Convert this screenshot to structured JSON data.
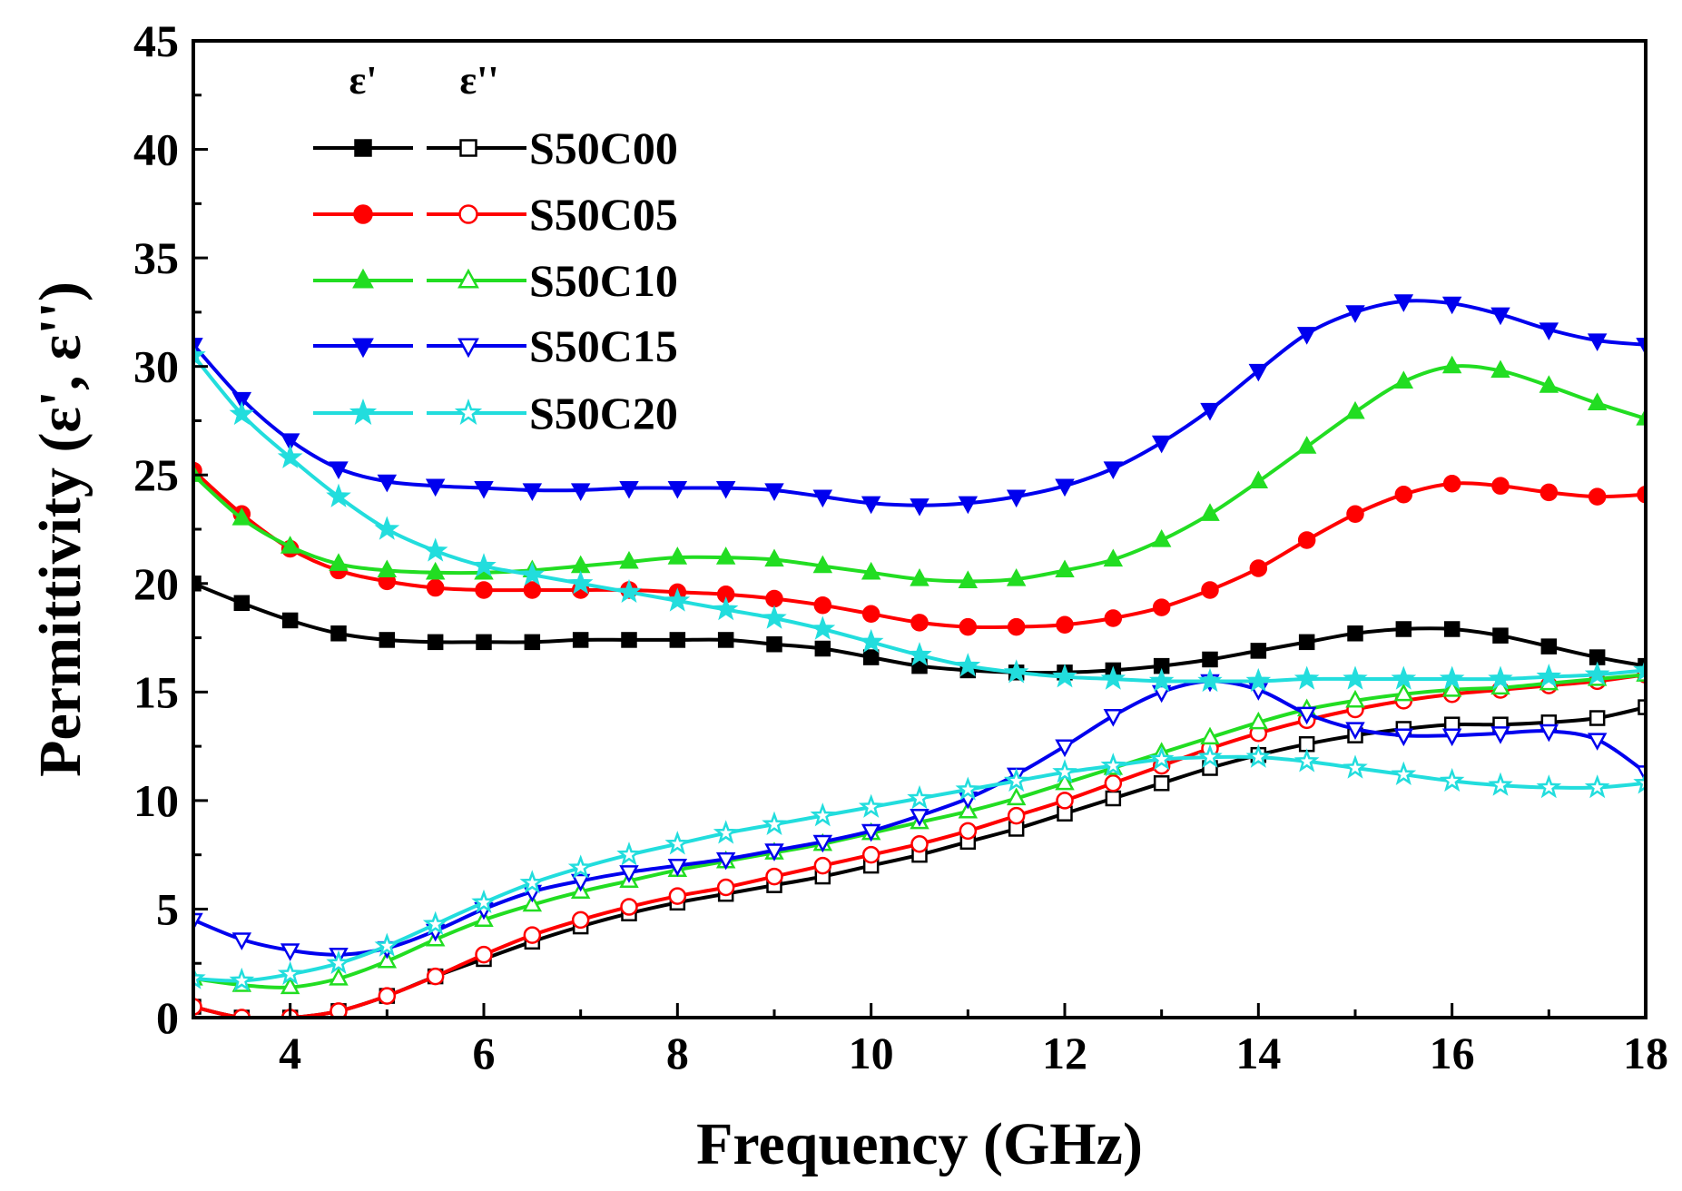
{
  "chart_data": {
    "type": "line",
    "title": "",
    "xlabel": "Frequency (GHz)",
    "ylabel": "Permittivity (ε', ε'')",
    "xlim": [
      3,
      18
    ],
    "ylim": [
      0,
      45
    ],
    "xticks": [
      4,
      6,
      8,
      10,
      12,
      14,
      16,
      18
    ],
    "yticks": [
      0,
      5,
      10,
      15,
      20,
      25,
      30,
      35,
      40,
      45
    ],
    "grid": false,
    "legend_position": "top-left",
    "legend_headers": [
      "ε'",
      "ε''"
    ],
    "x_grid": [
      3,
      3.5,
      4,
      4.5,
      5,
      5.5,
      6,
      6.5,
      7,
      7.5,
      8,
      8.5,
      9,
      9.5,
      10,
      10.5,
      11,
      11.5,
      12,
      12.5,
      13,
      13.5,
      14,
      14.5,
      15,
      15.5,
      16,
      16.5,
      17,
      17.5,
      18
    ],
    "series": [
      {
        "name": "S50C00",
        "color": "#000000",
        "eps_real": [
          20.0,
          19.1,
          18.3,
          17.7,
          17.4,
          17.3,
          17.3,
          17.3,
          17.4,
          17.4,
          17.4,
          17.4,
          17.2,
          17.0,
          16.6,
          16.2,
          16.0,
          15.9,
          15.9,
          16.0,
          16.2,
          16.5,
          16.9,
          17.3,
          17.7,
          17.9,
          17.9,
          17.6,
          17.1,
          16.6,
          16.2
        ],
        "eps_imag": [
          0.5,
          0.0,
          0.0,
          0.3,
          1.0,
          1.9,
          2.7,
          3.5,
          4.2,
          4.8,
          5.3,
          5.7,
          6.1,
          6.5,
          7.0,
          7.5,
          8.1,
          8.7,
          9.4,
          10.1,
          10.8,
          11.5,
          12.1,
          12.6,
          13.0,
          13.3,
          13.5,
          13.5,
          13.6,
          13.8,
          14.3
        ]
      },
      {
        "name": "S50C05",
        "color": "#ff0000",
        "eps_real": [
          25.2,
          23.2,
          21.6,
          20.6,
          20.1,
          19.8,
          19.7,
          19.7,
          19.7,
          19.7,
          19.6,
          19.5,
          19.3,
          19.0,
          18.6,
          18.2,
          18.0,
          18.0,
          18.1,
          18.4,
          18.9,
          19.7,
          20.7,
          22.0,
          23.2,
          24.1,
          24.6,
          24.5,
          24.2,
          24.0,
          24.1
        ],
        "eps_imag": [
          0.5,
          0.0,
          0.0,
          0.3,
          1.0,
          1.9,
          2.9,
          3.8,
          4.5,
          5.1,
          5.6,
          6.0,
          6.5,
          7.0,
          7.5,
          8.0,
          8.6,
          9.3,
          10.0,
          10.8,
          11.6,
          12.4,
          13.1,
          13.7,
          14.2,
          14.6,
          14.9,
          15.1,
          15.3,
          15.5,
          15.8
        ]
      },
      {
        "name": "S50C10",
        "color": "#22dd22",
        "eps_real": [
          25.0,
          23.0,
          21.7,
          20.9,
          20.6,
          20.5,
          20.5,
          20.6,
          20.8,
          21.0,
          21.2,
          21.2,
          21.1,
          20.8,
          20.5,
          20.2,
          20.1,
          20.2,
          20.6,
          21.1,
          22.0,
          23.2,
          24.7,
          26.3,
          27.9,
          29.3,
          30.0,
          29.8,
          29.1,
          28.3,
          27.6
        ],
        "eps_imag": [
          1.8,
          1.5,
          1.4,
          1.8,
          2.6,
          3.6,
          4.5,
          5.2,
          5.8,
          6.3,
          6.8,
          7.2,
          7.6,
          8.0,
          8.5,
          9.0,
          9.5,
          10.1,
          10.8,
          11.5,
          12.2,
          12.9,
          13.6,
          14.2,
          14.6,
          14.9,
          15.1,
          15.2,
          15.4,
          15.6,
          15.8
        ]
      },
      {
        "name": "S50C15",
        "color": "#0000ee",
        "eps_real": [
          31.0,
          28.5,
          26.6,
          25.3,
          24.7,
          24.5,
          24.4,
          24.3,
          24.3,
          24.4,
          24.4,
          24.4,
          24.3,
          24.0,
          23.7,
          23.6,
          23.7,
          24.0,
          24.5,
          25.3,
          26.5,
          28.0,
          29.8,
          31.5,
          32.5,
          33.0,
          32.9,
          32.4,
          31.7,
          31.2,
          31.0
        ],
        "eps_imag": [
          4.5,
          3.6,
          3.1,
          2.9,
          3.2,
          4.0,
          5.0,
          5.8,
          6.3,
          6.7,
          7.0,
          7.3,
          7.7,
          8.1,
          8.6,
          9.3,
          10.1,
          11.2,
          12.5,
          13.9,
          15.0,
          15.5,
          15.1,
          14.0,
          13.3,
          13.0,
          13.0,
          13.1,
          13.2,
          12.8,
          11.3
        ]
      },
      {
        "name": "S50C20",
        "color": "#22dddd",
        "eps_real": [
          30.5,
          27.8,
          25.8,
          24.0,
          22.5,
          21.5,
          20.8,
          20.4,
          20.0,
          19.6,
          19.2,
          18.8,
          18.4,
          17.9,
          17.3,
          16.7,
          16.2,
          15.9,
          15.7,
          15.6,
          15.5,
          15.5,
          15.5,
          15.6,
          15.6,
          15.6,
          15.6,
          15.6,
          15.7,
          15.8,
          16.0
        ],
        "eps_imag": [
          1.8,
          1.7,
          2.0,
          2.5,
          3.3,
          4.3,
          5.3,
          6.2,
          6.9,
          7.5,
          8.0,
          8.5,
          8.9,
          9.3,
          9.7,
          10.1,
          10.5,
          10.9,
          11.3,
          11.6,
          11.9,
          12.0,
          12.0,
          11.8,
          11.5,
          11.2,
          10.9,
          10.7,
          10.6,
          10.6,
          10.8
        ]
      }
    ]
  }
}
